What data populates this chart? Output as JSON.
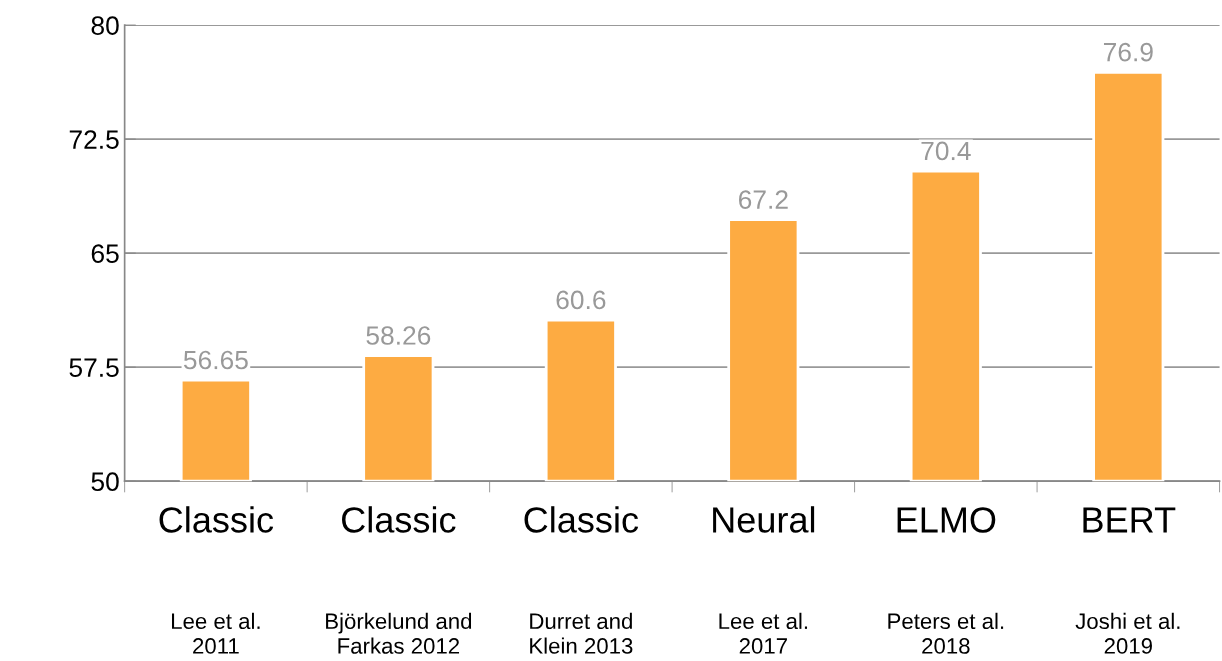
{
  "chart_data": {
    "type": "bar",
    "categories": [
      "Classic",
      "Classic",
      "Classic",
      "Neural",
      "ELMO",
      "BERT"
    ],
    "values": [
      56.65,
      58.26,
      60.6,
      67.2,
      70.4,
      76.9
    ],
    "color": "#fdab42",
    "data_labels": true,
    "ylim": [
      50,
      80
    ],
    "yticks": [
      50,
      57.5,
      65,
      72.5,
      80
    ],
    "grid": "y",
    "annotations": [
      "Lee et al.\n2011",
      "Björkelund and\nFarkas 2012",
      "Durret and\nKlein 2013",
      "Lee et al.\n2017",
      "Peters et al.\n2018",
      "Joshi et al.\n2019"
    ]
  }
}
